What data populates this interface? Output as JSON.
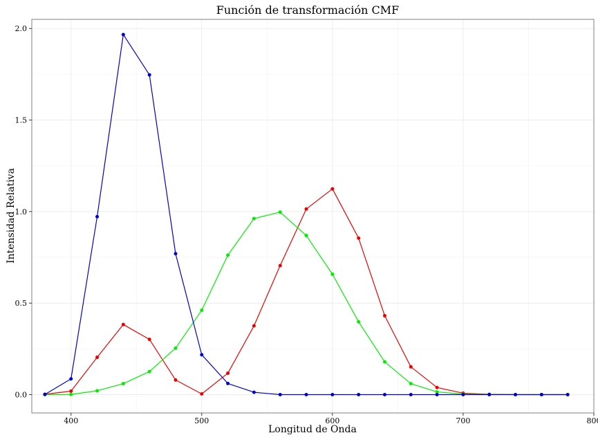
{
  "chart_data": {
    "type": "line",
    "title": "Función de transformación CMF",
    "xlabel": "Longitud de Onda",
    "ylabel": "Intensidad Relativa",
    "xlim": [
      370,
      800
    ],
    "ylim": [
      -0.1,
      2.05
    ],
    "xticks": [
      400,
      500,
      600,
      700,
      800
    ],
    "yticks": [
      0.0,
      0.5,
      1.0,
      1.5,
      2.0
    ],
    "ytick_labels": [
      "0.0",
      "0.5",
      "1.0",
      "1.5",
      "2.0"
    ],
    "grid": true,
    "legend": "none",
    "x": [
      380,
      400,
      420,
      440,
      460,
      480,
      500,
      520,
      540,
      560,
      580,
      600,
      620,
      640,
      660,
      680,
      700,
      720,
      740,
      760,
      780
    ],
    "series": [
      {
        "color": "#ee0000",
        "values": [
          0.002,
          0.019,
          0.204,
          0.383,
          0.302,
          0.08,
          0.004,
          0.117,
          0.376,
          0.705,
          1.014,
          1.124,
          0.855,
          0.431,
          0.152,
          0.039,
          0.008,
          0.002,
          0.0,
          0.0,
          0.0
        ]
      },
      {
        "color": "#00ee00",
        "values": [
          0.0,
          0.001,
          0.021,
          0.06,
          0.126,
          0.254,
          0.461,
          0.762,
          0.962,
          0.997,
          0.869,
          0.658,
          0.398,
          0.179,
          0.06,
          0.015,
          0.003,
          0.001,
          0.0,
          0.0,
          0.0
        ]
      },
      {
        "color": "#0000cc",
        "values": [
          0.001,
          0.086,
          0.972,
          1.967,
          1.747,
          0.77,
          0.218,
          0.061,
          0.013,
          0.0,
          0.0,
          0.0,
          0.0,
          0.0,
          0.0,
          0.0,
          0.0,
          0.0,
          0.0,
          0.0,
          0.0
        ]
      }
    ]
  }
}
